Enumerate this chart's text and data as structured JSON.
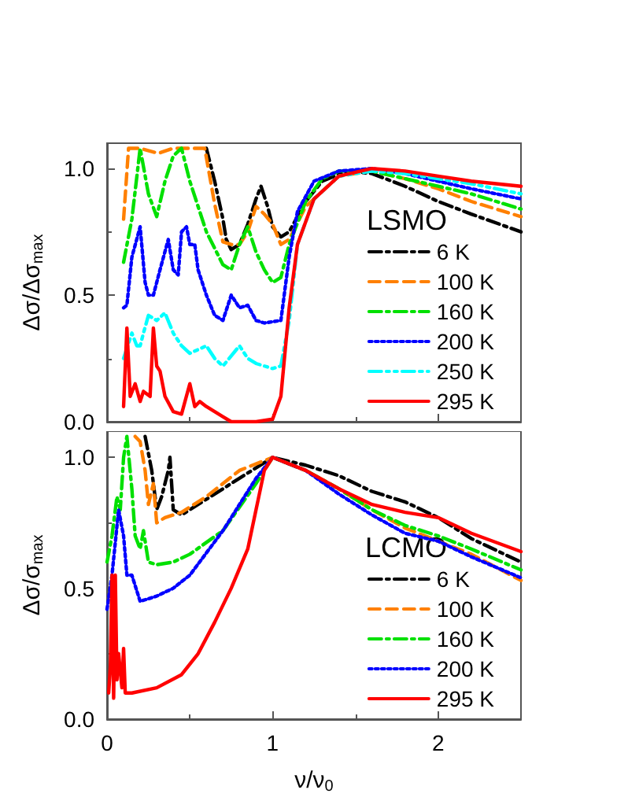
{
  "chart_data": [
    {
      "type": "line",
      "ylabel": "Δσ/Δσ$_{max}$",
      "annotations": [
        "LSMO"
      ],
      "xlim": [
        0,
        2.5
      ],
      "xticks": [
        0,
        1,
        2
      ],
      "ylim": [
        0,
        1.1
      ],
      "yticks": [
        {
          "value": 0,
          "label": "0.0"
        },
        {
          "value": 0.5,
          "label": "0.5"
        },
        {
          "value": 1,
          "label": "1.0"
        }
      ],
      "tick_labels": "y",
      "grid": false,
      "legend": "bottom right",
      "marker": "none",
      "series": [
        {
          "name": "6 K",
          "color": "#000000",
          "line_style": "dashdot",
          "x": [
            0.6,
            0.65,
            0.7,
            0.72,
            0.75,
            0.8,
            0.85,
            0.9,
            0.93,
            0.97,
            1.0,
            1.05,
            1.1,
            1.2,
            1.3,
            1.45,
            1.6,
            1.8,
            2.0,
            2.2,
            2.5
          ],
          "values": [
            1.08,
            0.95,
            0.8,
            0.72,
            0.68,
            0.7,
            0.78,
            0.88,
            0.93,
            0.85,
            0.77,
            0.73,
            0.75,
            0.87,
            0.95,
            0.99,
            0.98,
            0.93,
            0.87,
            0.82,
            0.75
          ]
        },
        {
          "name": "100 K",
          "color": "#ff8000",
          "line_style": "dashed",
          "x": [
            0.1,
            0.13,
            0.2,
            0.31,
            0.4,
            0.5,
            0.59,
            0.65,
            0.7,
            0.75,
            0.8,
            0.85,
            0.9,
            0.95,
            1.0,
            1.05,
            1.1,
            1.2,
            1.4,
            1.6,
            1.8,
            2.0,
            2.2,
            2.5
          ],
          "values": [
            0.8,
            1.08,
            1.08,
            1.06,
            1.08,
            1.08,
            1.08,
            0.86,
            0.71,
            0.7,
            0.7,
            0.75,
            0.85,
            0.82,
            0.78,
            0.7,
            0.72,
            0.85,
            0.97,
            0.99,
            0.96,
            0.92,
            0.87,
            0.81
          ]
        },
        {
          "name": "160 K",
          "color": "#00e000",
          "line_style": "dashdot",
          "x": [
            0.1,
            0.15,
            0.2,
            0.25,
            0.3,
            0.35,
            0.4,
            0.45,
            0.5,
            0.55,
            0.6,
            0.7,
            0.75,
            0.8,
            0.85,
            0.9,
            0.95,
            1.0,
            1.05,
            1.1,
            1.2,
            1.3,
            1.4,
            1.6,
            1.8,
            2.0,
            2.2,
            2.5
          ],
          "values": [
            0.63,
            0.8,
            1.08,
            0.9,
            0.81,
            0.95,
            1.05,
            1.08,
            0.95,
            0.85,
            0.75,
            0.62,
            0.6,
            0.7,
            0.77,
            0.67,
            0.6,
            0.55,
            0.57,
            0.7,
            0.87,
            0.96,
            0.99,
            0.99,
            0.96,
            0.93,
            0.9,
            0.84
          ]
        },
        {
          "name": "200 K",
          "color": "#0000ff",
          "line_style": "dotted",
          "x": [
            0.1,
            0.12,
            0.15,
            0.2,
            0.23,
            0.25,
            0.28,
            0.32,
            0.37,
            0.4,
            0.43,
            0.45,
            0.48,
            0.5,
            0.53,
            0.55,
            0.6,
            0.65,
            0.7,
            0.75,
            0.8,
            0.85,
            0.9,
            0.95,
            1.05,
            1.1,
            1.15,
            1.25,
            1.4,
            1.6,
            1.8,
            2.0,
            2.2,
            2.5
          ],
          "values": [
            0.45,
            0.46,
            0.65,
            0.77,
            0.55,
            0.5,
            0.5,
            0.6,
            0.72,
            0.6,
            0.58,
            0.75,
            0.77,
            0.7,
            0.7,
            0.6,
            0.5,
            0.42,
            0.4,
            0.5,
            0.45,
            0.46,
            0.4,
            0.39,
            0.4,
            0.65,
            0.83,
            0.95,
            0.99,
            1.0,
            0.98,
            0.95,
            0.92,
            0.88
          ]
        },
        {
          "name": "250 K",
          "color": "#00ffff",
          "line_style": "dashdotdot",
          "x": [
            0.1,
            0.15,
            0.18,
            0.2,
            0.22,
            0.25,
            0.3,
            0.35,
            0.4,
            0.45,
            0.5,
            0.6,
            0.65,
            0.7,
            0.8,
            0.85,
            0.9,
            1.0,
            1.05,
            1.1,
            1.15,
            1.25,
            1.4,
            1.6,
            1.8,
            2.0,
            2.2,
            2.5
          ],
          "values": [
            0.25,
            0.35,
            0.3,
            0.3,
            0.35,
            0.42,
            0.4,
            0.43,
            0.35,
            0.3,
            0.27,
            0.3,
            0.25,
            0.22,
            0.3,
            0.25,
            0.23,
            0.21,
            0.22,
            0.4,
            0.7,
            0.88,
            0.97,
            0.99,
            0.98,
            0.96,
            0.94,
            0.9
          ]
        },
        {
          "name": "295 K",
          "color": "#ff0000",
          "line_style": "solid",
          "x": [
            0.1,
            0.12,
            0.14,
            0.17,
            0.2,
            0.22,
            0.26,
            0.28,
            0.3,
            0.32,
            0.35,
            0.4,
            0.45,
            0.5,
            0.53,
            0.56,
            0.6,
            0.7,
            0.75,
            0.9,
            1.0,
            1.05,
            1.1,
            1.15,
            1.25,
            1.4,
            1.6,
            1.8,
            2.0,
            2.2,
            2.5
          ],
          "values": [
            0.06,
            0.37,
            0.1,
            0.15,
            0.08,
            0.12,
            0.1,
            0.37,
            0.22,
            0.2,
            0.1,
            0.04,
            0.03,
            0.15,
            0.06,
            0.08,
            0.06,
            0.02,
            0.0,
            0.0,
            0.01,
            0.1,
            0.45,
            0.7,
            0.88,
            0.97,
            1.0,
            0.99,
            0.97,
            0.95,
            0.93
          ]
        }
      ]
    },
    {
      "type": "line",
      "xlabel": "ν/ν$_{0}$",
      "ylabel": "Δσ/σ$_{max}$",
      "annotations": [
        "LCMO"
      ],
      "xlim": [
        0,
        2.5
      ],
      "xticks": [
        0,
        1,
        2
      ],
      "ylim": [
        0,
        1.1
      ],
      "yticks": [
        {
          "value": 0,
          "label": "0.0"
        },
        {
          "value": 0.5,
          "label": "0.5"
        },
        {
          "value": 1,
          "label": "1.0"
        }
      ],
      "grid": false,
      "legend": "bottom right",
      "marker": "none",
      "series": [
        {
          "name": "6 K",
          "color": "#000000",
          "line_style": "dashdot",
          "x": [
            0.23,
            0.27,
            0.3,
            0.33,
            0.37,
            0.38,
            0.4,
            0.45,
            0.5,
            0.7,
            0.9,
            1.0,
            1.2,
            1.4,
            1.6,
            1.8,
            2.0,
            2.2,
            2.5
          ],
          "values": [
            1.08,
            0.95,
            0.8,
            0.85,
            0.95,
            1.0,
            0.8,
            0.78,
            0.8,
            0.88,
            0.96,
            1.0,
            0.97,
            0.93,
            0.87,
            0.83,
            0.77,
            0.69,
            0.6
          ]
        },
        {
          "name": "100 K",
          "color": "#ff8000",
          "line_style": "dashed",
          "x": [
            0.17,
            0.2,
            0.23,
            0.25,
            0.28,
            0.3,
            0.35,
            0.45,
            0.6,
            0.8,
            1.0,
            1.2,
            1.4,
            1.6,
            1.8,
            2.0,
            2.2,
            2.5
          ],
          "values": [
            1.08,
            1.06,
            0.95,
            0.82,
            0.9,
            0.75,
            0.77,
            0.79,
            0.85,
            0.95,
            1.0,
            0.95,
            0.88,
            0.8,
            0.73,
            0.68,
            0.63,
            0.53
          ]
        },
        {
          "name": "160 K",
          "color": "#00e000",
          "line_style": "dashdot",
          "x": [
            0,
            0.03,
            0.06,
            0.08,
            0.1,
            0.12,
            0.15,
            0.17,
            0.2,
            0.22,
            0.25,
            0.3,
            0.4,
            0.5,
            0.7,
            0.9,
            1.0,
            1.2,
            1.4,
            1.6,
            1.8,
            2.0,
            2.2,
            2.5
          ],
          "values": [
            0.6,
            0.7,
            0.85,
            0.8,
            1.0,
            1.08,
            0.88,
            0.7,
            0.65,
            0.72,
            0.6,
            0.59,
            0.6,
            0.63,
            0.72,
            0.9,
            1.0,
            0.95,
            0.88,
            0.8,
            0.74,
            0.7,
            0.65,
            0.57
          ]
        },
        {
          "name": "200 K",
          "color": "#0000ff",
          "line_style": "dotted",
          "x": [
            0,
            0.03,
            0.07,
            0.1,
            0.12,
            0.15,
            0.2,
            0.3,
            0.4,
            0.5,
            0.7,
            0.9,
            1.0,
            1.2,
            1.4,
            1.6,
            1.8,
            2.0,
            2.2,
            2.5
          ],
          "values": [
            0.42,
            0.55,
            0.8,
            0.7,
            0.55,
            0.55,
            0.45,
            0.47,
            0.5,
            0.55,
            0.72,
            0.92,
            1.0,
            0.95,
            0.86,
            0.78,
            0.71,
            0.68,
            0.62,
            0.54
          ]
        },
        {
          "name": "295 K",
          "color": "#ff0000",
          "line_style": "solid",
          "x": [
            0.01,
            0.02,
            0.03,
            0.04,
            0.05,
            0.06,
            0.07,
            0.09,
            0.1,
            0.11,
            0.15,
            0.3,
            0.45,
            0.55,
            0.65,
            0.75,
            0.85,
            0.9,
            0.95,
            1.0,
            1.2,
            1.4,
            1.6,
            1.8,
            2.0,
            2.2,
            2.5
          ],
          "values": [
            0.1,
            0.2,
            0.55,
            0.08,
            0.55,
            0.15,
            0.25,
            0.12,
            0.27,
            0.1,
            0.1,
            0.12,
            0.17,
            0.25,
            0.37,
            0.5,
            0.65,
            0.8,
            0.95,
            1.0,
            0.95,
            0.88,
            0.82,
            0.79,
            0.77,
            0.71,
            0.64
          ]
        }
      ]
    }
  ]
}
